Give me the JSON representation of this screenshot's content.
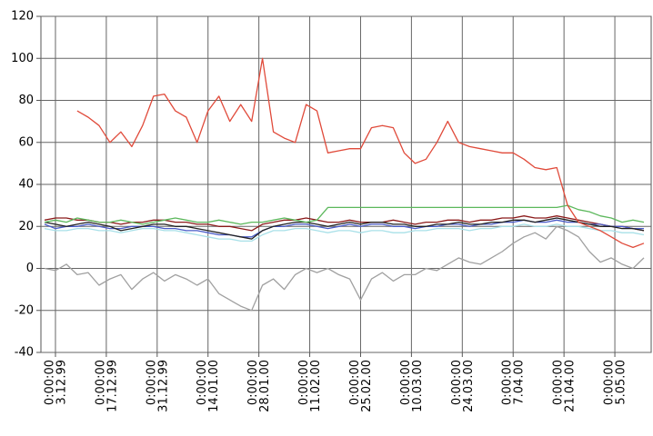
{
  "chart_data": {
    "type": "line",
    "x": [
      "30.11.99",
      "3.12.99",
      "6.12.99",
      "9.12.99",
      "12.12.99",
      "15.12.99",
      "18.12.99",
      "21.12.99",
      "24.12.99",
      "27.12.99",
      "30.12.99",
      "2.01.00",
      "5.01.00",
      "8.01.00",
      "11.01.00",
      "14.01.00",
      "17.01.00",
      "20.01.00",
      "23.01.00",
      "26.01.00",
      "29.01.00",
      "1.02.00",
      "4.02.00",
      "7.02.00",
      "10.02.00",
      "13.02.00",
      "16.02.00",
      "19.02.00",
      "22.02.00",
      "25.02.00",
      "28.02.00",
      "2.03.00",
      "5.03.00",
      "8.03.00",
      "11.03.00",
      "14.03.00",
      "17.03.00",
      "20.03.00",
      "23.03.00",
      "26.03.00",
      "29.03.00",
      "1.04.00",
      "4.04.00",
      "7.04.00",
      "10.04.00",
      "13.04.00",
      "16.04.00",
      "19.04.00",
      "22.04.00",
      "25.04.00",
      "28.04.00",
      "1.05.00",
      "4.05.00",
      "7.05.00",
      "10.05.00",
      "13.05.00"
    ],
    "series": [
      {
        "color": "#8b1a1a",
        "values": [
          23,
          24,
          24,
          23,
          23,
          22,
          22,
          21,
          22,
          22,
          23,
          23,
          22,
          22,
          21,
          21,
          20,
          20,
          19,
          18,
          21,
          22,
          23,
          23,
          24,
          23,
          22,
          22,
          23,
          22,
          22,
          22,
          23,
          22,
          21,
          22,
          22,
          23,
          23,
          22,
          23,
          23,
          24,
          24,
          25,
          24,
          24,
          25,
          24,
          23,
          22,
          21,
          20,
          20,
          19,
          18
        ]
      },
      {
        "color": "#a8e0e8",
        "values": [
          19,
          18,
          18,
          19,
          19,
          18,
          18,
          17,
          18,
          19,
          19,
          18,
          18,
          17,
          16,
          15,
          14,
          14,
          13,
          13,
          16,
          18,
          18,
          19,
          19,
          18,
          17,
          18,
          18,
          17,
          18,
          18,
          17,
          17,
          18,
          18,
          19,
          19,
          19,
          18,
          19,
          19,
          20,
          20,
          21,
          20,
          20,
          21,
          20,
          20,
          19,
          18,
          18,
          17,
          17,
          16
        ]
      },
      {
        "color": "#4a5cc8",
        "values": [
          21,
          19,
          20,
          20,
          21,
          20,
          19,
          19,
          20,
          20,
          20,
          19,
          19,
          18,
          18,
          17,
          16,
          16,
          15,
          15,
          18,
          20,
          20,
          21,
          21,
          20,
          19,
          20,
          21,
          20,
          21,
          21,
          20,
          20,
          19,
          20,
          20,
          21,
          21,
          20,
          21,
          21,
          22,
          22,
          23,
          22,
          22,
          23,
          22,
          22,
          21,
          21,
          20,
          20,
          19,
          19
        ]
      },
      {
        "color": "#222222",
        "values": [
          22,
          21,
          20,
          21,
          22,
          21,
          20,
          18,
          19,
          20,
          21,
          21,
          20,
          20,
          19,
          18,
          17,
          16,
          15,
          14,
          18,
          20,
          21,
          22,
          22,
          21,
          20,
          21,
          22,
          21,
          22,
          22,
          21,
          21,
          20,
          20,
          21,
          21,
          22,
          21,
          21,
          22,
          22,
          23,
          23,
          22,
          23,
          24,
          23,
          22,
          21,
          20,
          20,
          19,
          19,
          18
        ]
      },
      {
        "color": "#5cb85c",
        "values": [
          22,
          23,
          22,
          24,
          23,
          22,
          22,
          23,
          22,
          21,
          22,
          23,
          24,
          23,
          22,
          22,
          23,
          22,
          21,
          22,
          22,
          23,
          24,
          23,
          22,
          23,
          29,
          29,
          29,
          29,
          29,
          29,
          29,
          29,
          29,
          29,
          29,
          29,
          29,
          29,
          29,
          29,
          29,
          29,
          29,
          29,
          29,
          29,
          30,
          28,
          27,
          25,
          24,
          22,
          23,
          22
        ]
      },
      {
        "color": "#a0a0a0",
        "values": [
          0,
          -1,
          2,
          -3,
          -2,
          -8,
          -5,
          -3,
          -10,
          -5,
          -2,
          -6,
          -3,
          -5,
          -8,
          -5,
          -12,
          -15,
          -18,
          -20,
          -8,
          -5,
          -10,
          -3,
          0,
          -2,
          0,
          -3,
          -5,
          -15,
          -5,
          -2,
          -6,
          -3,
          -3,
          0,
          -1,
          2,
          5,
          3,
          2,
          5,
          8,
          12,
          15,
          17,
          14,
          20,
          18,
          15,
          8,
          3,
          5,
          2,
          0,
          5
        ]
      },
      {
        "color": "#e04a3a",
        "values": [
          null,
          null,
          null,
          75,
          72,
          68,
          60,
          65,
          58,
          68,
          82,
          83,
          75,
          72,
          60,
          75,
          82,
          70,
          78,
          70,
          100,
          65,
          62,
          60,
          78,
          75,
          55,
          56,
          57,
          57,
          67,
          68,
          67,
          55,
          50,
          52,
          60,
          70,
          60,
          58,
          57,
          56,
          55,
          55,
          52,
          48,
          47,
          48,
          30,
          22,
          20,
          18,
          15,
          12,
          10,
          12
        ]
      }
    ],
    "xlim": [
      "29.11.99",
      "15.05.00"
    ],
    "xticks": [
      {
        "value": "3.12.99",
        "label": [
          "0:00:00",
          "3.12.99"
        ]
      },
      {
        "value": "17.12.99",
        "label": [
          "0:00:00",
          "17.12.99"
        ]
      },
      {
        "value": "31.12.99",
        "label": [
          "0:00:00",
          "31.12.99"
        ]
      },
      {
        "value": "14.01.00",
        "label": [
          "0:00:00",
          "14.01.00"
        ]
      },
      {
        "value": "28.01.00",
        "label": [
          "0:00:00",
          "28.01.00"
        ]
      },
      {
        "value": "11.02.00",
        "label": [
          "0:00:00",
          "11.02.00"
        ]
      },
      {
        "value": "25.02.00",
        "label": [
          "0:00:00",
          "25.02.00"
        ]
      },
      {
        "value": "10.03.00",
        "label": [
          "0:00:00",
          "10.03.00"
        ]
      },
      {
        "value": "24.03.00",
        "label": [
          "0:00:00",
          "24.03.00"
        ]
      },
      {
        "value": "7.04.00",
        "label": [
          "0:00:00",
          "7.04.00"
        ]
      },
      {
        "value": "21.04.00",
        "label": [
          "0:00:00",
          "21.04.00"
        ]
      },
      {
        "value": "5.05.00",
        "label": [
          "0:00:00",
          "5.05.00"
        ]
      }
    ],
    "ylim": [
      -40,
      120
    ],
    "yticks": [
      -40,
      -20,
      0,
      20,
      40,
      60,
      80,
      100,
      120
    ],
    "grid": true
  }
}
